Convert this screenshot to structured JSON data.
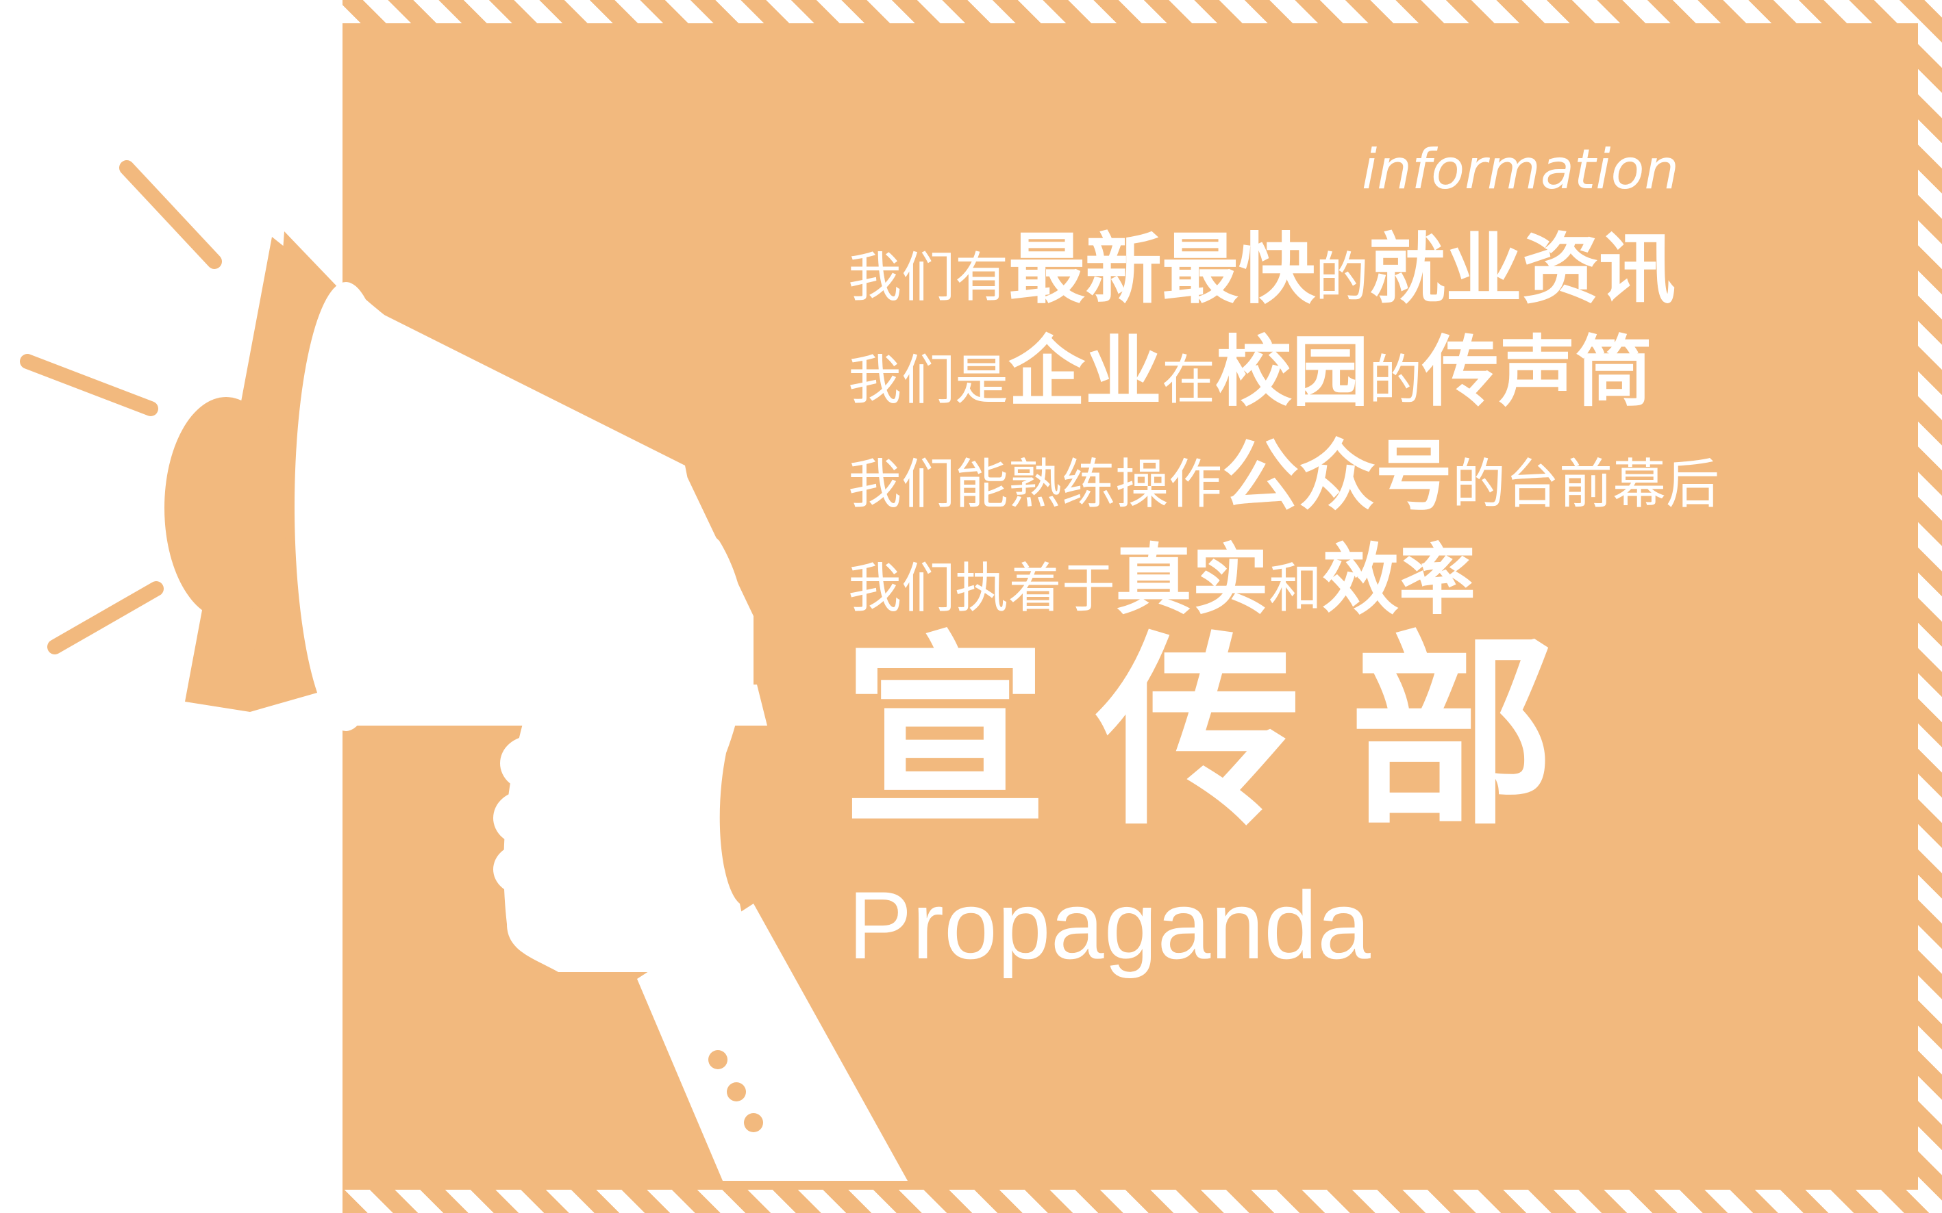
{
  "information_label": "information",
  "slogan": [
    [
      {
        "text": "我们有",
        "style": "normal"
      },
      {
        "text": "最新最快",
        "style": "strong"
      },
      {
        "text": "的",
        "style": "normal"
      },
      {
        "text": "就业资讯",
        "style": "strong"
      }
    ],
    [
      {
        "text": "我们是",
        "style": "normal"
      },
      {
        "text": "企业",
        "style": "strong"
      },
      {
        "text": "在",
        "style": "normal"
      },
      {
        "text": "校园",
        "style": "strong"
      },
      {
        "text": "的",
        "style": "normal"
      },
      {
        "text": "传声筒",
        "style": "strong"
      }
    ],
    [
      {
        "text": "我们能熟练操作",
        "style": "normal"
      },
      {
        "text": "公众号",
        "style": "strong"
      },
      {
        "text": "的台前幕后",
        "style": "normal"
      }
    ],
    [
      {
        "text": "我们执着于",
        "style": "normal"
      },
      {
        "text": "真实",
        "style": "strong"
      },
      {
        "text": "和",
        "style": "normal"
      },
      {
        "text": "效率",
        "style": "strong"
      }
    ]
  ],
  "department_title": "宣传部",
  "department_subtitle": "Propaganda",
  "colors": {
    "accent": "#f2b97e",
    "background": "#ffffff",
    "text": "#ffffff"
  },
  "icons": [
    "megaphone-icon",
    "hand-icon"
  ]
}
